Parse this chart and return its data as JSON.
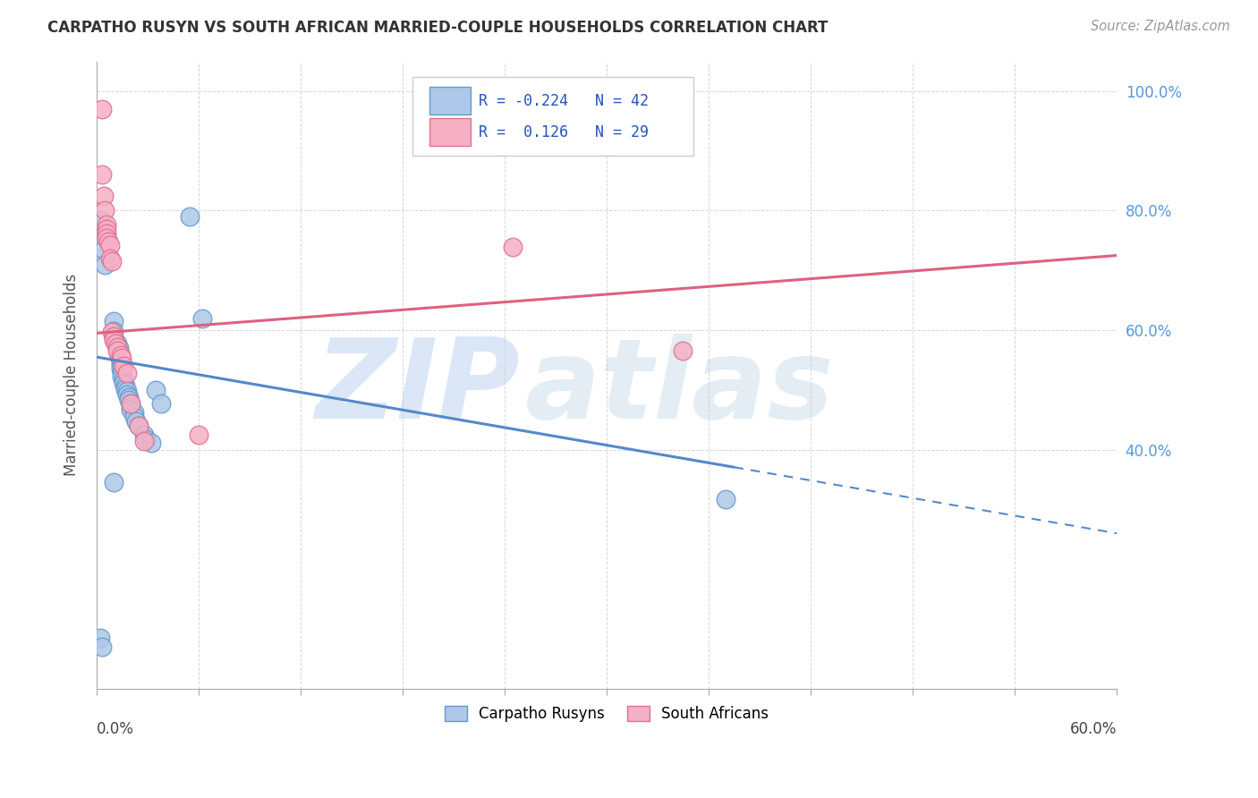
{
  "title": "CARPATHO RUSYN VS SOUTH AFRICAN MARRIED-COUPLE HOUSEHOLDS CORRELATION CHART",
  "source": "Source: ZipAtlas.com",
  "ylabel": "Married-couple Households",
  "watermark_zip": "ZIP",
  "watermark_atlas": "atlas",
  "blue_color": "#adc8e8",
  "pink_color": "#f5b0c5",
  "blue_edge_color": "#6699cc",
  "pink_edge_color": "#e07090",
  "blue_line_color": "#5588cc",
  "pink_line_color": "#e06080",
  "blue_dots": [
    [
      0.2,
      78.5
    ],
    [
      0.4,
      73.5
    ],
    [
      0.5,
      71.0
    ],
    [
      1.0,
      61.5
    ],
    [
      1.0,
      59.8
    ],
    [
      1.0,
      58.8
    ],
    [
      1.2,
      57.8
    ],
    [
      1.3,
      57.0
    ],
    [
      1.3,
      56.3
    ],
    [
      1.3,
      55.7
    ],
    [
      1.4,
      55.1
    ],
    [
      1.4,
      54.5
    ],
    [
      1.4,
      54.0
    ],
    [
      1.4,
      53.5
    ],
    [
      1.5,
      53.0
    ],
    [
      1.5,
      52.2
    ],
    [
      1.6,
      51.7
    ],
    [
      1.6,
      51.2
    ],
    [
      1.7,
      50.7
    ],
    [
      1.7,
      50.2
    ],
    [
      1.8,
      49.8
    ],
    [
      1.8,
      49.3
    ],
    [
      1.9,
      48.8
    ],
    [
      1.9,
      48.3
    ],
    [
      2.0,
      47.8
    ],
    [
      2.0,
      47.2
    ],
    [
      2.0,
      46.7
    ],
    [
      2.2,
      46.2
    ],
    [
      2.2,
      45.5
    ],
    [
      2.3,
      44.7
    ],
    [
      2.5,
      44.0
    ],
    [
      2.8,
      42.5
    ],
    [
      2.9,
      41.8
    ],
    [
      3.2,
      41.2
    ],
    [
      3.5,
      50.0
    ],
    [
      3.8,
      47.8
    ],
    [
      5.5,
      79.0
    ],
    [
      6.2,
      62.0
    ],
    [
      0.2,
      8.5
    ],
    [
      0.3,
      7.0
    ],
    [
      37.0,
      31.7
    ],
    [
      1.0,
      34.5
    ]
  ],
  "pink_dots": [
    [
      0.3,
      97.0
    ],
    [
      0.3,
      86.0
    ],
    [
      0.4,
      82.5
    ],
    [
      0.5,
      80.0
    ],
    [
      0.6,
      77.7
    ],
    [
      0.6,
      77.0
    ],
    [
      0.6,
      76.2
    ],
    [
      0.6,
      75.5
    ],
    [
      0.7,
      74.8
    ],
    [
      0.8,
      74.2
    ],
    [
      0.8,
      72.0
    ],
    [
      0.9,
      71.5
    ],
    [
      0.9,
      59.7
    ],
    [
      1.0,
      59.0
    ],
    [
      1.0,
      58.3
    ],
    [
      1.1,
      57.7
    ],
    [
      1.2,
      57.1
    ],
    [
      1.2,
      56.5
    ],
    [
      1.4,
      55.8
    ],
    [
      1.5,
      55.3
    ],
    [
      1.6,
      54.0
    ],
    [
      1.8,
      52.8
    ],
    [
      2.0,
      47.8
    ],
    [
      2.5,
      44.0
    ],
    [
      2.8,
      41.5
    ],
    [
      6.0,
      42.5
    ],
    [
      34.5,
      56.5
    ],
    [
      24.5,
      74.0
    ]
  ],
  "xlim": [
    0.0,
    60.0
  ],
  "ylim": [
    0.0,
    105.0
  ],
  "blue_trend_x": [
    0.0,
    60.0
  ],
  "blue_trend_y": [
    55.5,
    26.0
  ],
  "pink_trend_x": [
    0.0,
    60.0
  ],
  "pink_trend_y": [
    59.5,
    72.5
  ],
  "blue_solid_end_x": 37.5,
  "x_ticks": [
    0,
    6,
    12,
    18,
    24,
    30,
    36,
    42,
    48,
    54,
    60
  ],
  "y_ticks": [
    40,
    60,
    80,
    100
  ],
  "y_tick_labels": [
    "40.0%",
    "60.0%",
    "80.0%",
    "100.0%"
  ],
  "background_color": "#ffffff",
  "grid_color": "#cccccc"
}
